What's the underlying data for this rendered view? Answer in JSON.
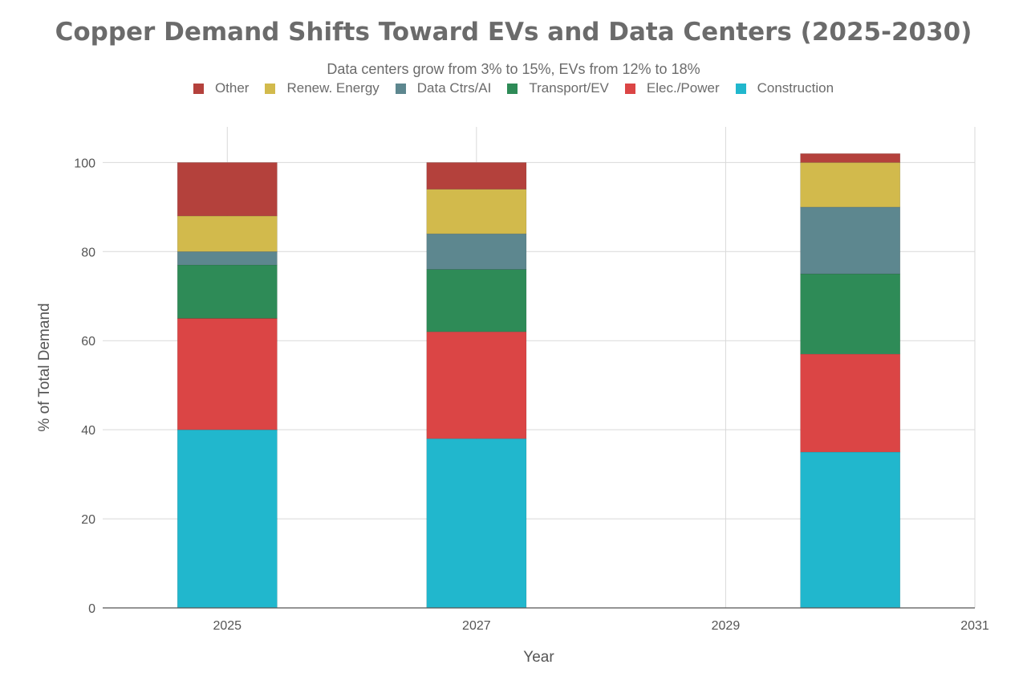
{
  "chart_data": {
    "type": "bar",
    "stacked": true,
    "title": "Copper Demand Shifts Toward EVs and Data Centers (2025-2030)",
    "subtitle": "Data centers grow from 3% to 15%, EVs from 12% to 18%",
    "xlabel": "Year",
    "ylabel": "% of Total Demand",
    "x": [
      2025,
      2027,
      2030
    ],
    "xlim": [
      2024,
      2031
    ],
    "ylim": [
      0,
      108
    ],
    "xticks": [
      2025,
      2027,
      2029,
      2031
    ],
    "yticks": [
      0,
      20,
      40,
      60,
      80,
      100
    ],
    "legend_position": "top-center",
    "legend_order": [
      "Other",
      "Renew. Energy",
      "Data Ctrs/AI",
      "Transport/EV",
      "Elec./Power",
      "Construction"
    ],
    "series": [
      {
        "name": "Construction",
        "color": "#21b7cd",
        "values": [
          40,
          38,
          35
        ]
      },
      {
        "name": "Elec./Power",
        "color": "#db4545",
        "values": [
          25,
          24,
          22
        ]
      },
      {
        "name": "Transport/EV",
        "color": "#2e8b57",
        "values": [
          12,
          14,
          18
        ]
      },
      {
        "name": "Data Ctrs/AI",
        "color": "#5d878f",
        "values": [
          3,
          8,
          15
        ]
      },
      {
        "name": "Renew. Energy",
        "color": "#d2ba4c",
        "values": [
          8,
          10,
          10
        ]
      },
      {
        "name": "Other",
        "color": "#b4413c",
        "values": [
          12,
          6,
          2
        ]
      }
    ]
  }
}
